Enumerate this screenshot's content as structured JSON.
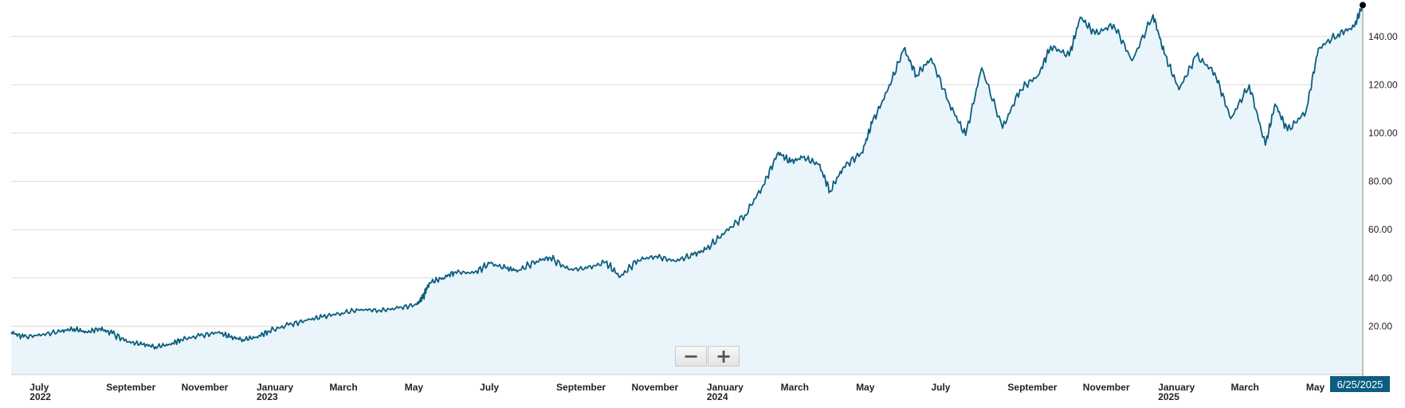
{
  "colors": {
    "line": "#0b5e7f",
    "area": "#eaf5fb",
    "grid": "#d9d9d9",
    "date_badge": "#0b5e7f"
  },
  "current_date": "6/25/2025",
  "zoom": {
    "out_icon": "minus-icon",
    "in_icon": "plus-icon"
  },
  "chart_data": {
    "type": "area",
    "title": "",
    "xlabel": "",
    "ylabel": "",
    "ylim": [
      0,
      155
    ],
    "xlim": [
      "2022-06-25",
      "2025-06-25"
    ],
    "grid": true,
    "legend": "none",
    "y_ticks": [
      "20.00",
      "40.00",
      "60.00",
      "80.00",
      "100.00",
      "120.00",
      "140.00"
    ],
    "x_ticks": [
      {
        "date": "2022-07-01",
        "label": "July",
        "year": "2022"
      },
      {
        "date": "2022-09-01",
        "label": "September",
        "year": ""
      },
      {
        "date": "2022-11-01",
        "label": "November",
        "year": ""
      },
      {
        "date": "2023-01-01",
        "label": "January",
        "year": "2023"
      },
      {
        "date": "2023-03-01",
        "label": "March",
        "year": ""
      },
      {
        "date": "2023-05-01",
        "label": "May",
        "year": ""
      },
      {
        "date": "2023-07-01",
        "label": "July",
        "year": ""
      },
      {
        "date": "2023-09-01",
        "label": "September",
        "year": ""
      },
      {
        "date": "2023-11-01",
        "label": "November",
        "year": ""
      },
      {
        "date": "2024-01-01",
        "label": "January",
        "year": "2024"
      },
      {
        "date": "2024-03-01",
        "label": "March",
        "year": ""
      },
      {
        "date": "2024-05-01",
        "label": "May",
        "year": ""
      },
      {
        "date": "2024-07-01",
        "label": "July",
        "year": ""
      },
      {
        "date": "2024-09-01",
        "label": "September",
        "year": ""
      },
      {
        "date": "2024-11-01",
        "label": "November",
        "year": ""
      },
      {
        "date": "2025-01-01",
        "label": "January",
        "year": "2025"
      },
      {
        "date": "2025-03-01",
        "label": "March",
        "year": ""
      },
      {
        "date": "2025-05-01",
        "label": "May",
        "year": ""
      }
    ],
    "series": [
      {
        "name": "",
        "points": [
          [
            "2022-06-25",
            17.5
          ],
          [
            "2022-07-05",
            15.5
          ],
          [
            "2022-07-20",
            16.5
          ],
          [
            "2022-08-05",
            18.0
          ],
          [
            "2022-08-15",
            19.0
          ],
          [
            "2022-08-25",
            17.5
          ],
          [
            "2022-09-05",
            19.0
          ],
          [
            "2022-09-15",
            17.0
          ],
          [
            "2022-09-28",
            13.5
          ],
          [
            "2022-10-10",
            12.5
          ],
          [
            "2022-10-20",
            11.5
          ],
          [
            "2022-11-01",
            12.5
          ],
          [
            "2022-11-10",
            14.5
          ],
          [
            "2022-11-25",
            16.0
          ],
          [
            "2022-12-10",
            17.5
          ],
          [
            "2022-12-20",
            15.5
          ],
          [
            "2022-12-30",
            14.5
          ],
          [
            "2023-01-10",
            15.5
          ],
          [
            "2023-01-20",
            18.0
          ],
          [
            "2023-02-05",
            20.5
          ],
          [
            "2023-02-20",
            22.5
          ],
          [
            "2023-03-05",
            24.0
          ],
          [
            "2023-03-20",
            25.5
          ],
          [
            "2023-04-05",
            27.0
          ],
          [
            "2023-04-20",
            26.5
          ],
          [
            "2023-05-05",
            27.5
          ],
          [
            "2023-05-20",
            29.0
          ],
          [
            "2023-05-25",
            32.0
          ],
          [
            "2023-05-30",
            38.0
          ],
          [
            "2023-06-10",
            40.0
          ],
          [
            "2023-06-20",
            42.5
          ],
          [
            "2023-07-05",
            42.0
          ],
          [
            "2023-07-18",
            46.0
          ],
          [
            "2023-08-01",
            44.0
          ],
          [
            "2023-08-10",
            43.0
          ],
          [
            "2023-08-25",
            47.0
          ],
          [
            "2023-09-05",
            48.5
          ],
          [
            "2023-09-20",
            43.5
          ],
          [
            "2023-10-05",
            44.0
          ],
          [
            "2023-10-20",
            46.5
          ],
          [
            "2023-11-01",
            40.5
          ],
          [
            "2023-11-15",
            47.5
          ],
          [
            "2023-11-30",
            49.0
          ],
          [
            "2023-12-15",
            47.0
          ],
          [
            "2023-12-30",
            49.5
          ],
          [
            "2024-01-10",
            52.0
          ],
          [
            "2024-01-25",
            59.0
          ],
          [
            "2024-02-10",
            66.0
          ],
          [
            "2024-02-25",
            78.5
          ],
          [
            "2024-03-08",
            92.0
          ],
          [
            "2024-03-18",
            88.0
          ],
          [
            "2024-03-28",
            90.0
          ],
          [
            "2024-04-10",
            87.0
          ],
          [
            "2024-04-19",
            76.0
          ],
          [
            "2024-04-30",
            86.0
          ],
          [
            "2024-05-15",
            92.0
          ],
          [
            "2024-05-23",
            104.0
          ],
          [
            "2024-06-05",
            118.0
          ],
          [
            "2024-06-18",
            135.0
          ],
          [
            "2024-06-28",
            124.0
          ],
          [
            "2024-07-10",
            131.0
          ],
          [
            "2024-07-25",
            112.0
          ],
          [
            "2024-08-07",
            99.0
          ],
          [
            "2024-08-20",
            127.0
          ],
          [
            "2024-09-06",
            102.0
          ],
          [
            "2024-09-20",
            118.0
          ],
          [
            "2024-10-05",
            124.0
          ],
          [
            "2024-10-15",
            136.0
          ],
          [
            "2024-10-30",
            132.0
          ],
          [
            "2024-11-08",
            148.0
          ],
          [
            "2024-11-20",
            141.0
          ],
          [
            "2024-12-05",
            145.0
          ],
          [
            "2024-12-20",
            130.0
          ],
          [
            "2025-01-06",
            149.0
          ],
          [
            "2025-01-15",
            133.0
          ],
          [
            "2025-01-27",
            118.0
          ],
          [
            "2025-02-10",
            132.0
          ],
          [
            "2025-02-25",
            125.0
          ],
          [
            "2025-03-10",
            106.0
          ],
          [
            "2025-03-25",
            120.0
          ],
          [
            "2025-04-07",
            95.0
          ],
          [
            "2025-04-15",
            112.0
          ],
          [
            "2025-04-25",
            101.0
          ],
          [
            "2025-05-10",
            109.0
          ],
          [
            "2025-05-20",
            135.0
          ],
          [
            "2025-06-05",
            141.0
          ],
          [
            "2025-06-18",
            144.0
          ],
          [
            "2025-06-25",
            153.0
          ]
        ]
      }
    ]
  }
}
